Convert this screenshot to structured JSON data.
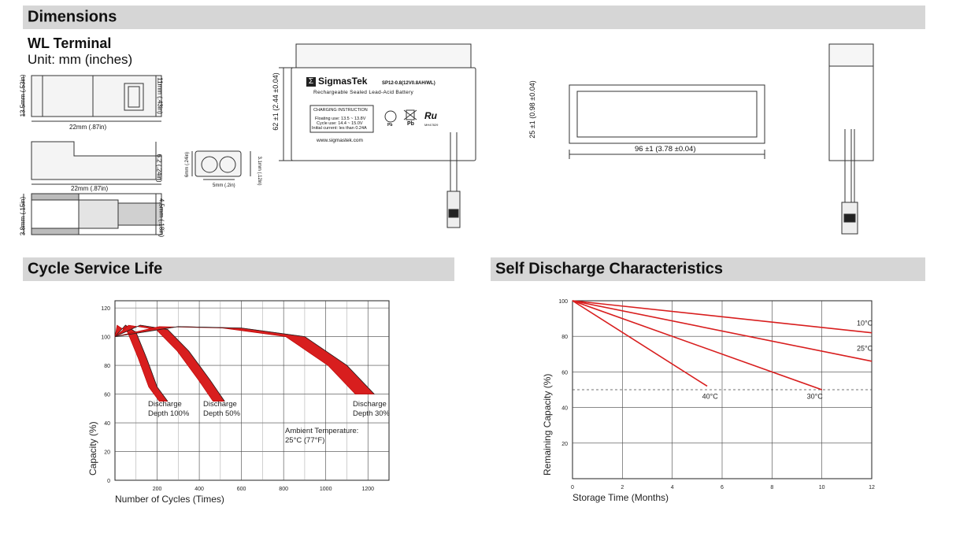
{
  "sections": {
    "dimensions": "Dimensions",
    "cycle": "Cycle Service Life",
    "self_discharge": "Self Discharge Characteristics"
  },
  "terminal": {
    "title": "WL Terminal",
    "unit": "Unit: mm (inches)",
    "dims": {
      "h135": "13.5mm (.53in)",
      "w22a": "22mm (.87in)",
      "h11": "11mm (.43in)",
      "h62t": "6.2 (.24in)",
      "w22b": "22mm (.87in)",
      "h38": "3.8mm (.15in)",
      "h45": "4.5mm (.18in)",
      "h6": "6mm (.24in)",
      "w5": "5mm (.2in)",
      "h31": "3.1mm (.12in)"
    }
  },
  "battery": {
    "brand": "SigmasTek",
    "model": "SP12-0.8(12V0.8AH/WL)",
    "subtitle": "Rechargeable Sealed Lead-Acid Battery",
    "charging_title": "CHARGING INSTRUCTION",
    "charging_lines": [
      "Floating use: 13.5 ~ 13.8V",
      "Cycle use: 14.4 ~ 15.0V",
      "Initial current: les than 0.24A"
    ],
    "website": "www.sigmastek.com",
    "mark_pb": "Pb",
    "mark_pb2": "Pb",
    "mark_ul": "Ru",
    "mark_ul_code": "MH47829",
    "height_dim": "62 ±1 (2.44 ±0.04)",
    "depth_dim": "25 ±1 (0.98 ±0.04)",
    "width_dim": "96 ±1 (3.78 ±0.04)"
  },
  "chart_data": [
    {
      "type": "line",
      "title": "Cycle Service Life",
      "xlabel": "Number of Cycles (Times)",
      "ylabel": "Capacity (%)",
      "xlim": [
        0,
        1300
      ],
      "ylim": [
        0,
        125
      ],
      "xticks": [
        "200",
        "400",
        "600",
        "800",
        "1000",
        "1200"
      ],
      "yticks": [
        "0",
        "20",
        "40",
        "60",
        "80",
        "100",
        "120"
      ],
      "grid": true,
      "series": [
        {
          "name": "Discharge Depth 100%",
          "x": [
            0,
            50,
            100,
            150,
            200,
            250
          ],
          "y": [
            100,
            108,
            103,
            85,
            65,
            55
          ]
        },
        {
          "name": "Discharge Depth 50%",
          "x": [
            0,
            120,
            250,
            350,
            450,
            520
          ],
          "y": [
            100,
            108,
            105,
            90,
            70,
            55
          ]
        },
        {
          "name": "Discharge Depth 30%",
          "x": [
            0,
            300,
            600,
            900,
            1100,
            1230
          ],
          "y": [
            100,
            107,
            106,
            100,
            80,
            60
          ]
        }
      ],
      "labels": [
        {
          "line1": "Discharge",
          "line2": "Depth 100%"
        },
        {
          "line1": "Discharge",
          "line2": "Depth 50%"
        },
        {
          "line1": "Discharge",
          "line2": "Depth 30%"
        }
      ],
      "annotation": {
        "line1": "Ambient Temperature:",
        "line2": "25°C (77°F)"
      }
    },
    {
      "type": "line",
      "title": "Self Discharge Characteristics",
      "xlabel": "Storage Time (Months)",
      "ylabel": "Remaining Capacity (%)",
      "xlim": [
        0,
        12
      ],
      "ylim": [
        0,
        100
      ],
      "xticks": [
        "0",
        "2",
        "4",
        "6",
        "8",
        "10",
        "12"
      ],
      "yticks": [
        "20",
        "40",
        "60",
        "80",
        "100"
      ],
      "grid": true,
      "reference_line": 50,
      "series": [
        {
          "name": "10°C",
          "x": [
            0,
            12
          ],
          "y": [
            100,
            82
          ]
        },
        {
          "name": "25°C",
          "x": [
            0,
            12
          ],
          "y": [
            100,
            66
          ]
        },
        {
          "name": "30°C",
          "x": [
            0,
            10
          ],
          "y": [
            100,
            50
          ]
        },
        {
          "name": "40°C",
          "x": [
            0,
            5.4
          ],
          "y": [
            100,
            52
          ]
        }
      ]
    }
  ]
}
